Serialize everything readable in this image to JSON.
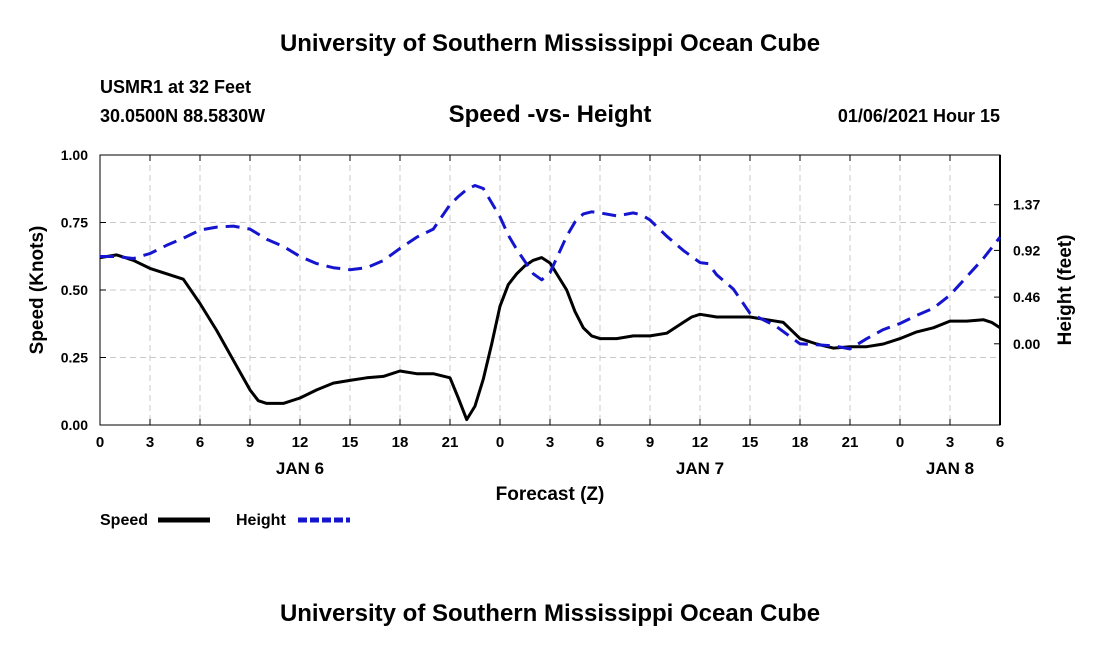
{
  "header": {
    "title": "University of Southern Mississippi Ocean Cube",
    "station": "USMR1 at 32 Feet",
    "coords": "30.0500N 88.5830W",
    "subtitle": "Speed -vs- Height",
    "datetime": "01/06/2021 Hour 15"
  },
  "footer": {
    "title": "University of Southern Mississippi Ocean Cube"
  },
  "chart_data": {
    "type": "line",
    "title": "Speed -vs- Height",
    "xlabel": "Forecast (Z)",
    "ylabel": "Speed (Knots)",
    "y2label": "Height (feet)",
    "xlim": [
      0,
      54
    ],
    "ylim": [
      0,
      1
    ],
    "y2lim": [
      -0.8,
      1.86
    ],
    "grid": true,
    "x_ticks": [
      0,
      3,
      6,
      9,
      12,
      15,
      18,
      21,
      24,
      27,
      30,
      33,
      36,
      39,
      42,
      45,
      48,
      51,
      54
    ],
    "x_tick_labels": [
      "0",
      "3",
      "6",
      "9",
      "12",
      "15",
      "18",
      "21",
      "0",
      "3",
      "6",
      "9",
      "12",
      "15",
      "18",
      "21",
      "0",
      "3",
      "6"
    ],
    "date_labels": [
      {
        "label": "JAN 6",
        "x": 12
      },
      {
        "label": "JAN 7",
        "x": 36
      },
      {
        "label": "JAN 8",
        "x": 51
      }
    ],
    "y_ticks": [
      "0.00",
      "0.25",
      "0.50",
      "0.75",
      "1.00"
    ],
    "y_tick_values": [
      0,
      0.25,
      0.5,
      0.75,
      1.0
    ],
    "y2_ticks": [
      "0.00",
      "0.46",
      "0.92",
      "1.37"
    ],
    "y2_tick_values": [
      0,
      0.46,
      0.92,
      1.37
    ],
    "series": [
      {
        "name": "Speed",
        "axis": "left",
        "color": "#000000",
        "style": "solid",
        "points": [
          [
            0,
            0.62
          ],
          [
            1,
            0.63
          ],
          [
            2,
            0.61
          ],
          [
            3,
            0.58
          ],
          [
            4,
            0.56
          ],
          [
            5,
            0.54
          ],
          [
            6,
            0.45
          ],
          [
            7,
            0.35
          ],
          [
            8,
            0.24
          ],
          [
            9,
            0.13
          ],
          [
            9.5,
            0.09
          ],
          [
            10,
            0.08
          ],
          [
            11,
            0.08
          ],
          [
            12,
            0.1
          ],
          [
            13,
            0.13
          ],
          [
            14,
            0.155
          ],
          [
            15,
            0.165
          ],
          [
            16,
            0.175
          ],
          [
            17,
            0.18
          ],
          [
            18,
            0.2
          ],
          [
            19,
            0.19
          ],
          [
            20,
            0.19
          ],
          [
            21,
            0.175
          ],
          [
            21.5,
            0.1
          ],
          [
            22,
            0.02
          ],
          [
            22.5,
            0.07
          ],
          [
            23,
            0.17
          ],
          [
            23.5,
            0.3
          ],
          [
            24,
            0.44
          ],
          [
            24.5,
            0.52
          ],
          [
            25,
            0.56
          ],
          [
            25.5,
            0.59
          ],
          [
            26,
            0.61
          ],
          [
            26.5,
            0.62
          ],
          [
            27,
            0.6
          ],
          [
            28,
            0.5
          ],
          [
            28.5,
            0.42
          ],
          [
            29,
            0.36
          ],
          [
            29.5,
            0.33
          ],
          [
            30,
            0.32
          ],
          [
            31,
            0.32
          ],
          [
            32,
            0.33
          ],
          [
            33,
            0.33
          ],
          [
            34,
            0.34
          ],
          [
            35,
            0.38
          ],
          [
            35.5,
            0.4
          ],
          [
            36,
            0.41
          ],
          [
            37,
            0.4
          ],
          [
            38,
            0.4
          ],
          [
            39,
            0.4
          ],
          [
            40,
            0.39
          ],
          [
            41,
            0.38
          ],
          [
            42,
            0.32
          ],
          [
            43,
            0.3
          ],
          [
            44,
            0.285
          ],
          [
            45,
            0.29
          ],
          [
            46,
            0.29
          ],
          [
            47,
            0.3
          ],
          [
            48,
            0.32
          ],
          [
            49,
            0.345
          ],
          [
            50,
            0.36
          ],
          [
            51,
            0.385
          ],
          [
            52,
            0.385
          ],
          [
            53,
            0.39
          ],
          [
            53.5,
            0.38
          ],
          [
            54,
            0.36
          ]
        ]
      },
      {
        "name": "Height",
        "axis": "right",
        "color": "#1515d0",
        "style": "dashed",
        "points": [
          [
            0,
            0.86
          ],
          [
            1,
            0.86
          ],
          [
            2,
            0.84
          ],
          [
            3,
            0.89
          ],
          [
            4,
            0.97
          ],
          [
            5,
            1.04
          ],
          [
            6,
            1.12
          ],
          [
            7,
            1.15
          ],
          [
            8,
            1.16
          ],
          [
            9,
            1.13
          ],
          [
            10,
            1.03
          ],
          [
            11,
            0.96
          ],
          [
            12,
            0.86
          ],
          [
            13,
            0.79
          ],
          [
            14,
            0.75
          ],
          [
            15,
            0.73
          ],
          [
            16,
            0.75
          ],
          [
            17,
            0.82
          ],
          [
            18,
            0.94
          ],
          [
            19,
            1.05
          ],
          [
            20,
            1.13
          ],
          [
            21,
            1.37
          ],
          [
            21.5,
            1.45
          ],
          [
            22,
            1.52
          ],
          [
            22.5,
            1.56
          ],
          [
            23,
            1.53
          ],
          [
            24,
            1.25
          ],
          [
            24.5,
            1.07
          ],
          [
            25,
            0.93
          ],
          [
            25.5,
            0.81
          ],
          [
            26,
            0.69
          ],
          [
            26.5,
            0.63
          ],
          [
            27,
            0.7
          ],
          [
            27.5,
            0.88
          ],
          [
            28,
            1.06
          ],
          [
            28.5,
            1.2
          ],
          [
            29,
            1.28
          ],
          [
            29.5,
            1.3
          ],
          [
            30,
            1.29
          ],
          [
            31,
            1.26
          ],
          [
            32,
            1.29
          ],
          [
            32.5,
            1.27
          ],
          [
            33,
            1.22
          ],
          [
            34,
            1.06
          ],
          [
            35,
            0.92
          ],
          [
            36,
            0.8
          ],
          [
            36.5,
            0.79
          ],
          [
            37,
            0.68
          ],
          [
            38,
            0.54
          ],
          [
            39,
            0.3
          ],
          [
            40,
            0.22
          ],
          [
            40.5,
            0.18
          ],
          [
            41,
            0.12
          ],
          [
            42,
            0
          ],
          [
            43,
            -0.01
          ],
          [
            44,
            -0.02
          ],
          [
            45,
            -0.05
          ],
          [
            46,
            0.05
          ],
          [
            47,
            0.14
          ],
          [
            48,
            0.2
          ],
          [
            49,
            0.28
          ],
          [
            50,
            0.35
          ],
          [
            51,
            0.48
          ],
          [
            52,
            0.66
          ],
          [
            53,
            0.84
          ],
          [
            54,
            1.05
          ]
        ]
      }
    ],
    "legend": [
      {
        "label": "Speed",
        "color": "#000000",
        "style": "solid"
      },
      {
        "label": "Height",
        "color": "#1515d0",
        "style": "dashed"
      }
    ]
  }
}
